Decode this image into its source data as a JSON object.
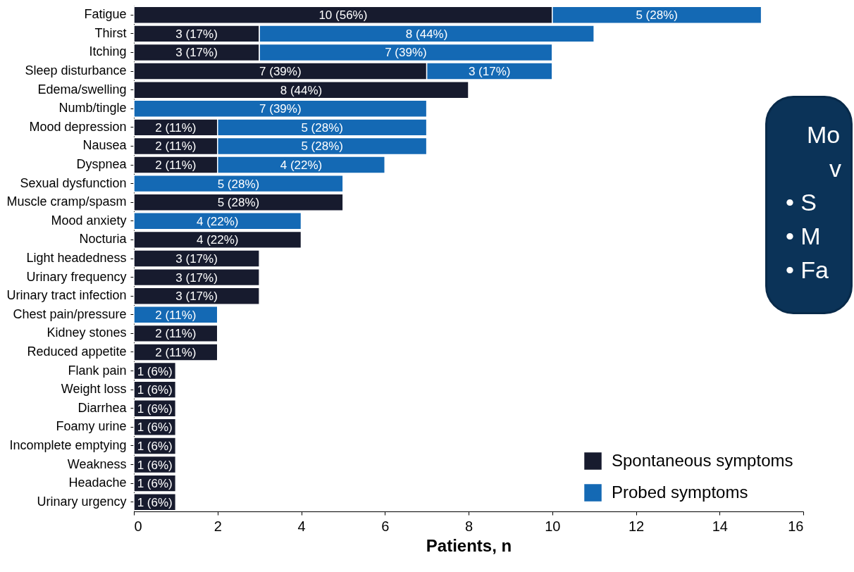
{
  "chart_data": {
    "type": "bar",
    "orientation": "horizontal",
    "stacked": true,
    "categories": [
      "Fatigue",
      "Thirst",
      "Itching",
      "Sleep disturbance",
      "Edema/swelling",
      "Numb/tingle",
      "Mood depression",
      "Nausea",
      "Dyspnea",
      "Sexual dysfunction",
      "Muscle cramp/spasm",
      "Mood anxiety",
      "Nocturia",
      "Light headedness",
      "Urinary frequency",
      "Urinary tract infection",
      "Chest pain/pressure",
      "Kidney stones",
      "Reduced appetite",
      "Flank pain",
      "Weight loss",
      "Diarrhea",
      "Foamy urine",
      "Incomplete emptying",
      "Weakness",
      "Headache",
      "Urinary urgency"
    ],
    "series": [
      {
        "name": "Spontaneous symptoms",
        "color": "#171b2e",
        "values": [
          10,
          3,
          3,
          7,
          8,
          null,
          2,
          2,
          2,
          null,
          5,
          null,
          4,
          3,
          3,
          3,
          null,
          2,
          2,
          1,
          1,
          1,
          1,
          1,
          1,
          1,
          1
        ],
        "value_labels": [
          "10 (56%)",
          "3 (17%)",
          "3 (17%)",
          "7 (39%)",
          "8 (44%)",
          null,
          "2 (11%)",
          "2 (11%)",
          "2 (11%)",
          null,
          "5 (28%)",
          null,
          "4 (22%)",
          "3 (17%)",
          "3 (17%)",
          "3 (17%)",
          null,
          "2 (11%)",
          "2 (11%)",
          "1 (6%)",
          "1 (6%)",
          "1 (6%)",
          "1 (6%)",
          "1 (6%)",
          "1 (6%)",
          "1 (6%)",
          "1 (6%)"
        ]
      },
      {
        "name": "Probed symptoms",
        "color": "#1469b4",
        "values": [
          5,
          8,
          7,
          3,
          null,
          7,
          5,
          5,
          4,
          5,
          null,
          4,
          null,
          null,
          null,
          null,
          2,
          null,
          null,
          null,
          null,
          null,
          null,
          null,
          null,
          null,
          null
        ],
        "value_labels": [
          "5 (28%)",
          "8 (44%)",
          "7 (39%)",
          "3 (17%)",
          null,
          "7 (39%)",
          "5 (28%)",
          "5 (28%)",
          "4 (22%)",
          "5 (28%)",
          null,
          "4 (22%)",
          null,
          null,
          null,
          null,
          "2 (11%)",
          null,
          null,
          null,
          null,
          null,
          null,
          null,
          null,
          null,
          null
        ]
      }
    ],
    "xlim": [
      0,
      16
    ],
    "xticks": [
      0,
      2,
      4,
      6,
      8,
      10,
      12,
      14,
      16
    ],
    "xlabel": "Patients, n",
    "legend": "bottom right",
    "grid": false,
    "annotations": [
      "Mo",
      "v",
      "• S",
      "• M",
      "• Fa"
    ]
  }
}
